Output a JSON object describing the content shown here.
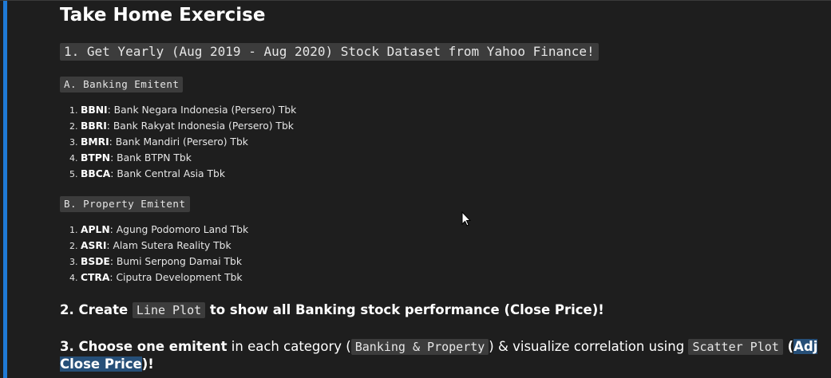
{
  "title": "Take Home Exercise",
  "step1": {
    "heading": "1. Get Yearly (Aug 2019 - Aug 2020) Stock Dataset from Yahoo Finance!",
    "banking": {
      "label": "A. Banking Emitent",
      "items": [
        {
          "code": "BBNI",
          "name": ": Bank Negara Indonesia (Persero) Tbk"
        },
        {
          "code": "BBRI",
          "name": ": Bank Rakyat Indonesia (Persero) Tbk"
        },
        {
          "code": "BMRI",
          "name": ": Bank Mandiri (Persero) Tbk"
        },
        {
          "code": "BTPN",
          "name": ": Bank BTPN Tbk"
        },
        {
          "code": "BBCA",
          "name": ": Bank Central Asia Tbk"
        }
      ]
    },
    "property": {
      "label": "B. Property Emitent",
      "items": [
        {
          "code": "APLN",
          "name": ": Agung Podomoro Land Tbk"
        },
        {
          "code": "ASRI",
          "name": ": Alam Sutera Reality Tbk"
        },
        {
          "code": "BSDE",
          "name": ": Bumi Serpong Damai Tbk"
        },
        {
          "code": "CTRA",
          "name": ": Ciputra Development Tbk"
        }
      ]
    }
  },
  "step2": {
    "prefix": "2. Create ",
    "code": "Line Plot",
    "middle": " to show all ",
    "bold": "Banking",
    "suffix": " stock performance (Close Price)!"
  },
  "step3": {
    "prefix": "3. Choose ",
    "bold1": "one emitent",
    "middle1": " in each category (",
    "code1": "Banking & Property",
    "middle2": ") & visualize correlation using ",
    "code2": "Scatter Plot",
    "middle3": " (",
    "highlight1": "Adj",
    "highlight2": "Close Price",
    "suffix": ")!"
  }
}
